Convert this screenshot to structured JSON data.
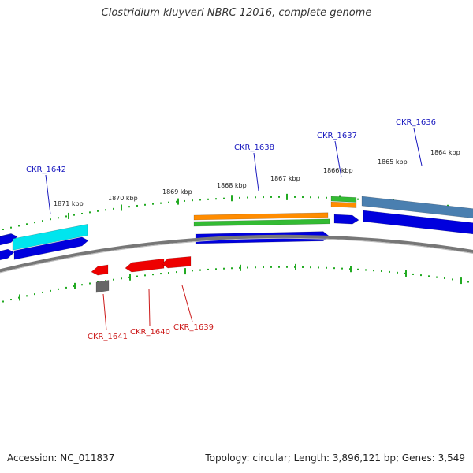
{
  "title": "Clostridium kluyveri NBRC 12016, complete genome",
  "footer": {
    "accession": "Accession: NC_011837",
    "summary": "Topology: circular; Length: 3,896,121 bp; Genes: 3,549"
  },
  "colors": {
    "forward_cds": "#0000dd",
    "reverse_cds": "#ee0000",
    "cyan_feature": "#00e5ee",
    "orange_feature": "#ff8c00",
    "green_feature": "#33bb33",
    "steelblue_feature": "#4a7fb0",
    "gray_feature": "#666666",
    "backbone": "#777777",
    "tick": "#22aa22",
    "forward_label": "#1a1abf",
    "reverse_label": "#cc1a1a"
  },
  "ticks": [
    {
      "label": "1871 kbp"
    },
    {
      "label": "1870 kbp"
    },
    {
      "label": "1869 kbp"
    },
    {
      "label": "1868 kbp"
    },
    {
      "label": "1867 kbp"
    },
    {
      "label": "1866 kbp"
    },
    {
      "label": "1865 kbp"
    },
    {
      "label": "1864 kbp"
    }
  ],
  "gene_labels": [
    {
      "text": "CKR_1642",
      "strand": "forward"
    },
    {
      "text": "CKR_1638",
      "strand": "forward"
    },
    {
      "text": "CKR_1637",
      "strand": "forward"
    },
    {
      "text": "CKR_1636",
      "strand": "forward"
    },
    {
      "text": "CKR_1641",
      "strand": "reverse"
    },
    {
      "text": "CKR_1640",
      "strand": "reverse"
    },
    {
      "text": "CKR_1639",
      "strand": "reverse"
    }
  ]
}
